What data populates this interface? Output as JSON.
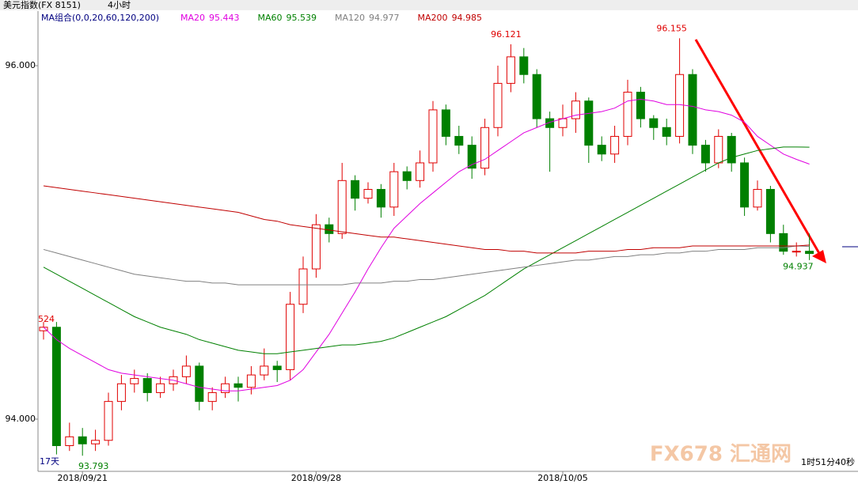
{
  "chart_data": {
    "type": "candlestick",
    "title": "美元指数(FX 8151)",
    "period": "4小时",
    "legend_title": "MA组合(0,0,20,60,120,200)",
    "up_color": "#e00000",
    "down_color": "#008000",
    "ylim": [
      93.709,
      96.309
    ],
    "yticks": [
      {
        "value": 94,
        "label": "94.000"
      },
      {
        "value": 96,
        "label": "96.000"
      }
    ],
    "grid": false,
    "categories": [
      null,
      null,
      null,
      "2018/09/21",
      null,
      null,
      null,
      null,
      null,
      null,
      null,
      null,
      null,
      null,
      null,
      null,
      null,
      null,
      null,
      null,
      null,
      "2018/09/28",
      null,
      null,
      null,
      null,
      null,
      null,
      null,
      null,
      null,
      null,
      null,
      null,
      null,
      null,
      null,
      null,
      null,
      null,
      "2018/10/05",
      null,
      null,
      null,
      null,
      null,
      null,
      null,
      null,
      null,
      null,
      null,
      null,
      null,
      null,
      null,
      null,
      null,
      null,
      null
    ],
    "open": [
      94.5,
      94.52,
      93.85,
      93.9,
      93.86,
      93.88,
      94.1,
      94.2,
      94.23,
      94.15,
      94.2,
      94.24,
      94.3,
      94.1,
      94.15,
      94.2,
      94.18,
      94.25,
      94.3,
      94.28,
      94.65,
      94.85,
      95.1,
      95.05,
      95.35,
      95.25,
      95.3,
      95.2,
      95.4,
      95.35,
      95.45,
      95.75,
      95.6,
      95.55,
      95.42,
      95.65,
      95.9,
      96.05,
      95.95,
      95.7,
      95.65,
      95.7,
      95.8,
      95.55,
      95.5,
      95.6,
      95.85,
      95.7,
      95.65,
      95.6,
      95.95,
      95.55,
      95.45,
      95.6,
      95.45,
      95.2,
      95.3,
      95.05,
      94.95,
      94.95
    ],
    "high": [
      94.55,
      94.55,
      93.98,
      93.95,
      93.94,
      94.15,
      94.25,
      94.28,
      94.26,
      94.24,
      94.28,
      94.36,
      94.32,
      94.18,
      94.24,
      94.24,
      94.3,
      94.4,
      94.33,
      94.72,
      94.92,
      95.16,
      95.14,
      95.45,
      95.38,
      95.34,
      95.33,
      95.45,
      95.43,
      95.52,
      95.8,
      95.78,
      95.66,
      95.6,
      95.7,
      96.0,
      96.121,
      96.1,
      95.98,
      95.74,
      95.78,
      95.85,
      95.82,
      95.6,
      95.66,
      95.92,
      95.88,
      95.72,
      95.7,
      96.155,
      95.98,
      95.58,
      95.64,
      95.62,
      95.48,
      95.35,
      95.32,
      95.1,
      95.0,
      95.05
    ],
    "low": [
      94.45,
      93.8,
      93.82,
      93.793,
      93.82,
      93.85,
      94.05,
      94.15,
      94.1,
      94.12,
      94.16,
      94.2,
      94.05,
      94.05,
      94.12,
      94.1,
      94.14,
      94.22,
      94.21,
      94.22,
      94.6,
      94.8,
      95.0,
      95.02,
      95.18,
      95.22,
      95.14,
      95.15,
      95.3,
      95.31,
      95.4,
      95.55,
      95.5,
      95.36,
      95.38,
      95.6,
      95.85,
      95.9,
      95.65,
      95.4,
      95.6,
      95.62,
      95.45,
      95.46,
      95.45,
      95.55,
      95.65,
      95.58,
      95.55,
      95.56,
      95.5,
      95.4,
      95.42,
      95.4,
      95.15,
      95.18,
      95.0,
      94.93,
      94.92,
      94.9
    ],
    "close": [
      94.52,
      93.85,
      93.9,
      93.86,
      93.88,
      94.1,
      94.2,
      94.23,
      94.15,
      94.2,
      94.24,
      94.3,
      94.1,
      94.15,
      94.2,
      94.18,
      94.25,
      94.3,
      94.28,
      94.65,
      94.85,
      95.1,
      95.05,
      95.35,
      95.25,
      95.3,
      95.2,
      95.4,
      95.35,
      95.45,
      95.75,
      95.6,
      95.55,
      95.42,
      95.65,
      95.9,
      96.05,
      95.95,
      95.7,
      95.65,
      95.7,
      95.8,
      95.55,
      95.5,
      95.6,
      95.85,
      95.7,
      95.65,
      95.6,
      95.95,
      95.55,
      95.45,
      95.6,
      95.45,
      95.2,
      95.3,
      95.05,
      94.95,
      94.95,
      94.937
    ],
    "series": [
      {
        "name": "MA20",
        "color": "#e000e0",
        "values": [
          94.52,
          94.45,
          94.4,
          94.36,
          94.32,
          94.28,
          94.26,
          94.25,
          94.24,
          94.23,
          94.22,
          94.2,
          94.18,
          94.17,
          94.16,
          94.16,
          94.17,
          94.18,
          94.19,
          94.22,
          94.28,
          94.38,
          94.48,
          94.6,
          94.72,
          94.85,
          94.97,
          95.08,
          95.15,
          95.22,
          95.28,
          95.34,
          95.4,
          95.44,
          95.47,
          95.52,
          95.57,
          95.62,
          95.65,
          95.68,
          95.7,
          95.72,
          95.73,
          95.74,
          95.76,
          95.8,
          95.81,
          95.8,
          95.78,
          95.78,
          95.77,
          95.75,
          95.74,
          95.72,
          95.68,
          95.6,
          95.55,
          95.5,
          95.47,
          95.443
        ]
      },
      {
        "name": "MA60",
        "color": "#008000",
        "values": [
          94.86,
          94.82,
          94.78,
          94.74,
          94.7,
          94.66,
          94.62,
          94.58,
          94.55,
          94.52,
          94.5,
          94.48,
          94.45,
          94.43,
          94.41,
          94.39,
          94.38,
          94.37,
          94.37,
          94.38,
          94.39,
          94.4,
          94.41,
          94.42,
          94.42,
          94.43,
          94.44,
          94.46,
          94.49,
          94.52,
          94.55,
          94.58,
          94.62,
          94.66,
          94.7,
          94.75,
          94.8,
          94.85,
          94.89,
          94.93,
          94.97,
          95.01,
          95.05,
          95.09,
          95.13,
          95.17,
          95.21,
          95.25,
          95.29,
          95.33,
          95.37,
          95.41,
          95.45,
          95.48,
          95.5,
          95.52,
          95.53,
          95.54,
          95.54,
          95.539
        ]
      },
      {
        "name": "MA120",
        "color": "#808080",
        "values": [
          94.96,
          94.94,
          94.92,
          94.9,
          94.88,
          94.86,
          94.84,
          94.82,
          94.81,
          94.8,
          94.79,
          94.78,
          94.78,
          94.77,
          94.77,
          94.76,
          94.76,
          94.76,
          94.76,
          94.76,
          94.76,
          94.76,
          94.76,
          94.76,
          94.77,
          94.77,
          94.77,
          94.78,
          94.78,
          94.79,
          94.79,
          94.8,
          94.81,
          94.82,
          94.83,
          94.84,
          94.85,
          94.86,
          94.87,
          94.88,
          94.89,
          94.9,
          94.9,
          94.91,
          94.92,
          94.92,
          94.93,
          94.93,
          94.94,
          94.94,
          94.95,
          94.95,
          94.96,
          94.96,
          94.96,
          94.97,
          94.97,
          94.97,
          94.98,
          94.977
        ]
      },
      {
        "name": "MA200",
        "color": "#c00000",
        "values": [
          95.32,
          95.31,
          95.3,
          95.29,
          95.28,
          95.27,
          95.26,
          95.25,
          95.24,
          95.23,
          95.22,
          95.21,
          95.2,
          95.19,
          95.18,
          95.17,
          95.15,
          95.13,
          95.12,
          95.1,
          95.09,
          95.08,
          95.07,
          95.06,
          95.05,
          95.04,
          95.03,
          95.03,
          95.02,
          95.01,
          95.0,
          94.99,
          94.98,
          94.97,
          94.96,
          94.96,
          94.95,
          94.95,
          94.94,
          94.94,
          94.94,
          94.94,
          94.95,
          94.95,
          94.95,
          94.96,
          94.96,
          94.97,
          94.97,
          94.97,
          94.98,
          94.98,
          94.98,
          94.98,
          94.98,
          94.98,
          94.98,
          94.98,
          94.98,
          94.985
        ]
      }
    ],
    "left_label": "524",
    "span_label": "17天",
    "countdown": "1时51分40秒",
    "watermark": "FX678 汇通网"
  }
}
